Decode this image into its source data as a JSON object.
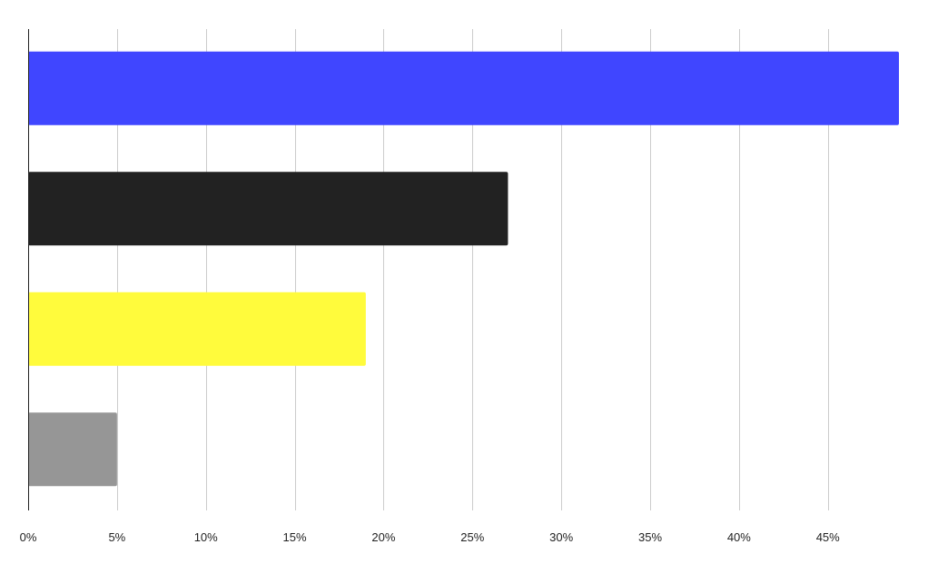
{
  "chart_data": {
    "type": "bar",
    "orientation": "horizontal",
    "title": "",
    "xlabel": "",
    "ylabel": "",
    "categories": [
      "",
      "",
      "",
      ""
    ],
    "values": [
      49,
      27,
      19,
      5
    ],
    "bar_colors": [
      "#4046ff",
      "#222222",
      "#fffb3c",
      "#969696"
    ],
    "xlim": [
      0,
      49
    ],
    "x_ticks": [
      0,
      5,
      10,
      15,
      20,
      25,
      30,
      35,
      40,
      45
    ],
    "x_tick_labels": [
      "0%",
      "5%",
      "10%",
      "15%",
      "20%",
      "25%",
      "30%",
      "35%",
      "40%",
      "45%"
    ],
    "grid": true,
    "legend": "none"
  }
}
